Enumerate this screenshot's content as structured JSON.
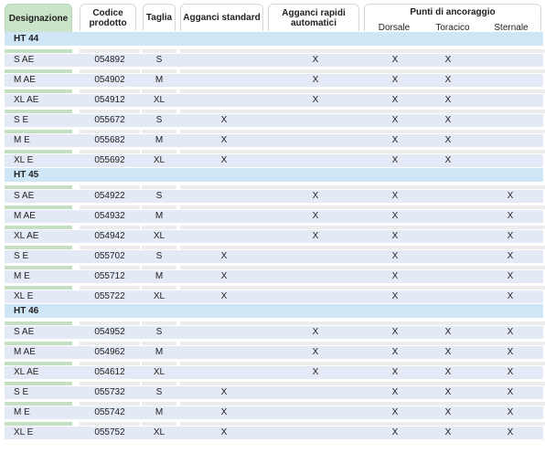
{
  "headers": {
    "designazione": "Designazione",
    "codice": "Codice prodotto",
    "taglia": "Taglia",
    "agganci_standard": "Agganci standard",
    "agganci_rapidi": "Agganci rapidi automatici",
    "punti": "Punti di ancoraggio",
    "dorsale": "Dorsale",
    "toracico": "Toracico",
    "sternale": "Sternale"
  },
  "sections": [
    {
      "title": "HT 44",
      "rows": [
        {
          "des": "S AE",
          "code": "054892",
          "size": "S",
          "std": "",
          "rap": "X",
          "dor": "X",
          "tor": "X",
          "ste": ""
        },
        {
          "des": "M AE",
          "code": "054902",
          "size": "M",
          "std": "",
          "rap": "X",
          "dor": "X",
          "tor": "X",
          "ste": ""
        },
        {
          "des": "XL AE",
          "code": "054912",
          "size": "XL",
          "std": "",
          "rap": "X",
          "dor": "X",
          "tor": "X",
          "ste": ""
        },
        {
          "des": "S E",
          "code": "055672",
          "size": "S",
          "std": "X",
          "rap": "",
          "dor": "X",
          "tor": "X",
          "ste": ""
        },
        {
          "des": "M E",
          "code": "055682",
          "size": "M",
          "std": "X",
          "rap": "",
          "dor": "X",
          "tor": "X",
          "ste": ""
        },
        {
          "des": "XL E",
          "code": "055692",
          "size": "XL",
          "std": "X",
          "rap": "",
          "dor": "X",
          "tor": "X",
          "ste": ""
        }
      ]
    },
    {
      "title": "HT 45",
      "rows": [
        {
          "des": "S AE",
          "code": "054922",
          "size": "S",
          "std": "",
          "rap": "X",
          "dor": "X",
          "tor": "",
          "ste": "X"
        },
        {
          "des": "M AE",
          "code": "054932",
          "size": "M",
          "std": "",
          "rap": "X",
          "dor": "X",
          "tor": "",
          "ste": "X"
        },
        {
          "des": "XL AE",
          "code": "054942",
          "size": "XL",
          "std": "",
          "rap": "X",
          "dor": "X",
          "tor": "",
          "ste": "X"
        },
        {
          "des": "S E",
          "code": "055702",
          "size": "S",
          "std": "X",
          "rap": "",
          "dor": "X",
          "tor": "",
          "ste": "X"
        },
        {
          "des": "M E",
          "code": "055712",
          "size": "M",
          "std": "X",
          "rap": "",
          "dor": "X",
          "tor": "",
          "ste": "X"
        },
        {
          "des": "XL E",
          "code": "055722",
          "size": "XL",
          "std": "X",
          "rap": "",
          "dor": "X",
          "tor": "",
          "ste": "X"
        }
      ]
    },
    {
      "title": "HT 46",
      "rows": [
        {
          "des": "S AE",
          "code": "054952",
          "size": "S",
          "std": "",
          "rap": "X",
          "dor": "X",
          "tor": "X",
          "ste": "X"
        },
        {
          "des": "M AE",
          "code": "054962",
          "size": "M",
          "std": "",
          "rap": "X",
          "dor": "X",
          "tor": "X",
          "ste": "X"
        },
        {
          "des": "XL AE",
          "code": "054612",
          "size": "XL",
          "std": "",
          "rap": "X",
          "dor": "X",
          "tor": "X",
          "ste": "X"
        },
        {
          "des": "S E",
          "code": "055732",
          "size": "S",
          "std": "X",
          "rap": "",
          "dor": "X",
          "tor": "X",
          "ste": "X"
        },
        {
          "des": "M E",
          "code": "055742",
          "size": "M",
          "std": "X",
          "rap": "",
          "dor": "X",
          "tor": "X",
          "ste": "X"
        },
        {
          "des": "XL E",
          "code": "055752",
          "size": "XL",
          "std": "X",
          "rap": "",
          "dor": "X",
          "tor": "X",
          "ste": "X"
        }
      ]
    }
  ],
  "colors": {
    "header_green": "#c9e4c8",
    "section_blue": "#cfe6f6",
    "row_band": "#e3e9f5"
  }
}
